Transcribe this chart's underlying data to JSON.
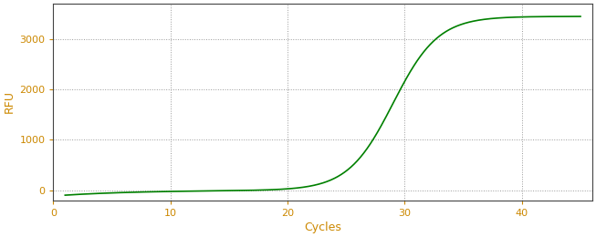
{
  "xlabel": "Cycles",
  "ylabel": "RFU",
  "line_color": "#008000",
  "line_width": 1.2,
  "background_color": "#ffffff",
  "grid_color": "#999999",
  "xlim": [
    0,
    46
  ],
  "ylim": [
    -200,
    3700
  ],
  "xticks": [
    0,
    10,
    20,
    30,
    40
  ],
  "yticks": [
    0,
    1000,
    2000,
    3000
  ],
  "tick_color": "#cc8800",
  "label_color": "#cc8800",
  "sigmoid_L": 3450,
  "sigmoid_k": 0.52,
  "sigmoid_x0": 29.0,
  "x_start": 1,
  "x_end": 45,
  "tick_fontsize": 8,
  "label_fontsize": 9,
  "spine_color": "#444444"
}
